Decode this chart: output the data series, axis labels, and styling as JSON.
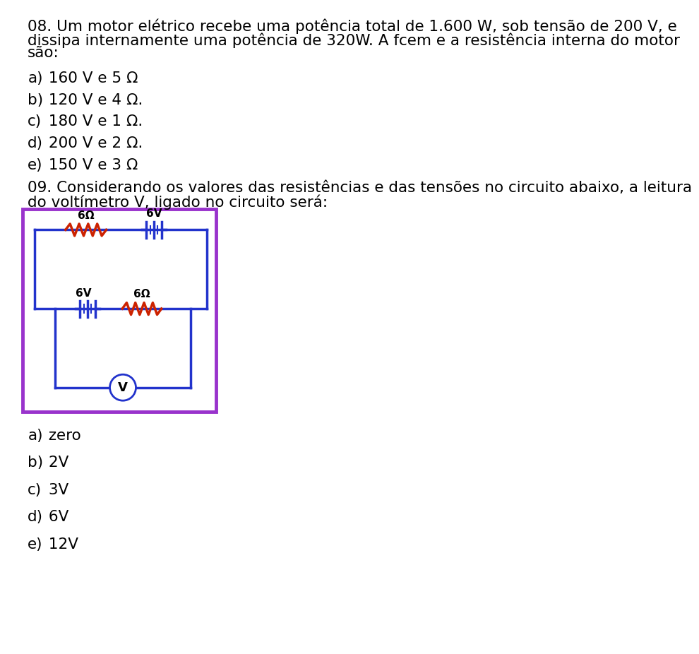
{
  "q08_line1": "08. Um motor elétrico recebe uma potência total de 1.600 W, sob tensão de 200 V, e",
  "q08_line2": "dissipa internamente uma potência de 320W. A fcem e a resistência interna do motor",
  "q08_line3": "são:",
  "q08_options": [
    {
      "label": "a)",
      "text": " 160 V e 5 Ω"
    },
    {
      "label": "b)",
      "text": " 120 V e 4 Ω."
    },
    {
      "label": "c)",
      "text": " 180 V e 1 Ω."
    },
    {
      "label": "d)",
      "text": " 200 V e 2 Ω."
    },
    {
      "label": "e)",
      "text": " 150 V e 3 Ω"
    }
  ],
  "q09_line1": "09. Considerando os valores das resistências e das tensões no circuito abaixo, a leitura",
  "q09_line2": "do voltímetro V, ligado no circuito será:",
  "q09_options": [
    {
      "label": "a)",
      "text": " zero"
    },
    {
      "label": "b)",
      "text": " 2V"
    },
    {
      "label": "c)",
      "text": " 3V"
    },
    {
      "label": "d)",
      "text": " 6V"
    },
    {
      "label": "e)",
      "text": " 12V"
    }
  ],
  "circuit": {
    "border_color": "#9933cc",
    "wire_color": "#2233cc",
    "resistor_color": "#cc2200",
    "battery_color": "#2233cc",
    "voltmeter_color": "#2233cc",
    "top_resistor_label": "6Ω",
    "top_battery_label": "6V",
    "mid_battery_label": "6V",
    "mid_resistor_label": "6Ω",
    "voltmeter_label": "V"
  },
  "font_size": 15.5,
  "background_color": "#ffffff"
}
